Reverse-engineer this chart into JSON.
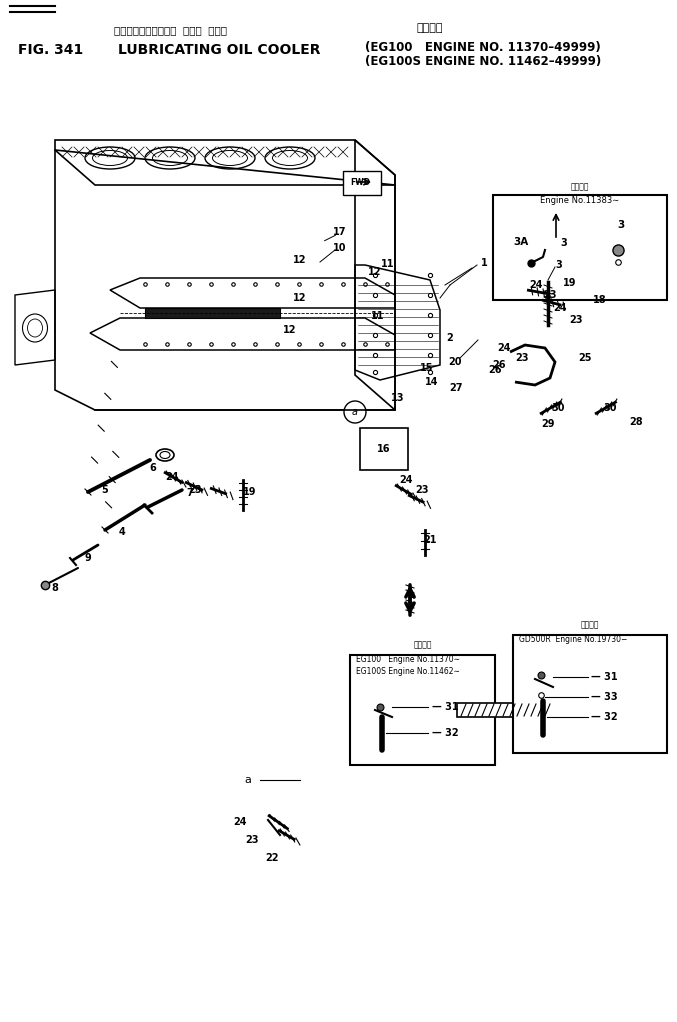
{
  "fig_number": "FIG. 341",
  "title_jp": "ルーブリケーティング  オイル  クーラ",
  "title_en": "LUBRICATING OIL COOLER",
  "applicable_jp": "適用号機",
  "engine_info1": "(EG100   ENGINE NO. 11370–49999)",
  "engine_info2": "(EG100S ENGINE NO. 11462–49999)",
  "bg_color": "#ffffff",
  "line_color": "#000000",
  "inset1_label_jp1": "適用号機",
  "inset1_engine": "Engine No.11383∼",
  "inset2_label_jp1": "適用機種",
  "inset2_engine1": "EG100   Engine No.11370∼",
  "inset2_engine2": "EG100S Engine No.11462∼",
  "inset3_engine": "GD500R  Engine No.19730−",
  "inset3_label_jp": "適用号機"
}
